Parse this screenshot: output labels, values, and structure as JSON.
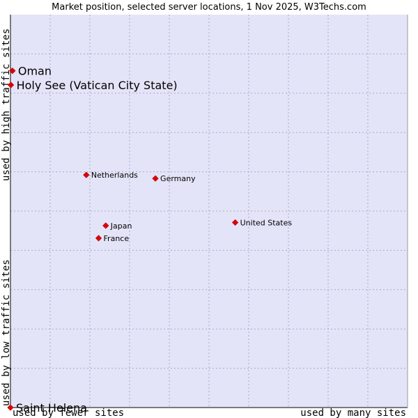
{
  "chart_data": {
    "type": "scatter",
    "title": "Market position, selected server locations, 1 Nov 2025, W3Techs.com",
    "xlabel_left": "used by fewer sites",
    "xlabel_right": "used by many sites",
    "ylabel_bottom": "used by low traffic sites",
    "ylabel_top": "used by high traffic sites",
    "xlim": [
      0,
      100
    ],
    "ylim": [
      0,
      100
    ],
    "grid": true,
    "colors": {
      "plot_bg": "#e4e4f8",
      "marker": "#e00000",
      "grid": "#a8a8c8",
      "frame": "#000000"
    },
    "points": [
      {
        "name": "Oman",
        "x": 0.5,
        "y": 85.7,
        "label_size": "large"
      },
      {
        "name": "Holy See (Vatican City State)",
        "x": 0.1,
        "y": 82.1,
        "label_size": "large"
      },
      {
        "name": "Netherlands",
        "x": 19.1,
        "y": 59.2,
        "label_size": "small"
      },
      {
        "name": "Germany",
        "x": 36.5,
        "y": 58.3,
        "label_size": "small"
      },
      {
        "name": "United States",
        "x": 56.6,
        "y": 47.1,
        "label_size": "small"
      },
      {
        "name": "Japan",
        "x": 24.0,
        "y": 46.3,
        "label_size": "small"
      },
      {
        "name": "France",
        "x": 22.2,
        "y": 43.1,
        "label_size": "small"
      },
      {
        "name": "Saint Helena",
        "x": 0.0,
        "y": 0.0,
        "label_size": "large"
      }
    ]
  }
}
